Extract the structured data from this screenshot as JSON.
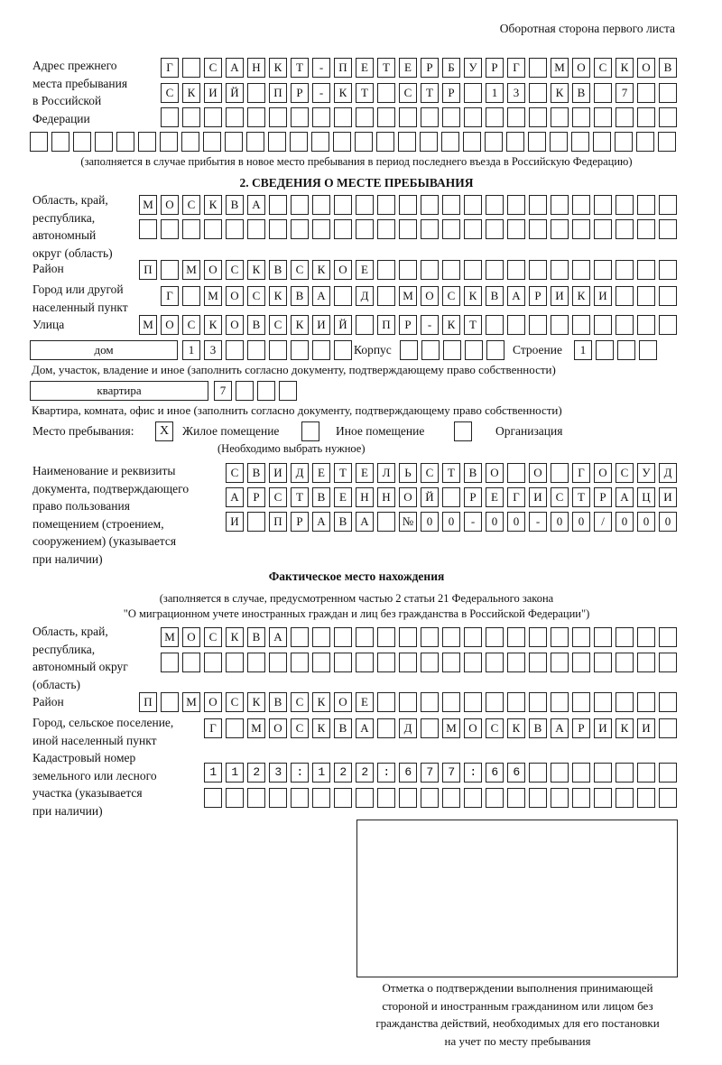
{
  "header": "Оборотная сторона первого листа",
  "previous_address": {
    "label": [
      "Адрес прежнего",
      "места пребывания",
      "в Российской",
      "Федерации"
    ],
    "rows": [
      "Г САНКТ-ПЕТЕРБУРГ МОСКОВ",
      "СКИЙ ПР-КТ СТР 13 КВ 7",
      "",
      ""
    ],
    "note": "(заполняется в случае прибытия в новое место пребывания в период последнего въезда в Российскую Федерацию)"
  },
  "section2": {
    "title": "2. СВЕДЕНИЯ О МЕСТЕ ПРЕБЫВАНИЯ",
    "region_label": [
      "Область, край,",
      "республика,",
      "автономный",
      "округ (область)"
    ],
    "region_rows": [
      "МОСКВА",
      ""
    ],
    "district_label": "Район",
    "district": "П МОСКВСКОЕ",
    "city_label": [
      "Город или другой",
      "населенный пункт"
    ],
    "city": "Г МОСКВА Д МОСКВАРИКИ",
    "street_label": "Улица",
    "street": "МОСКОВСКИЙ ПР-КТ",
    "house_type": "дом",
    "house": "13",
    "korpus_label": "Корпус",
    "korpus": "",
    "building_label": "Строение",
    "building": "1",
    "house_note": "Дом, участок, владение и иное (заполнить согласно документу, подтверждающему право собственности)",
    "apartment_type": "квартира",
    "apartment": "7",
    "apartment_note": "Квартира, комната, офис и иное (заполнить согласно документу, подтверждающему право собственности)",
    "place_label": "Место пребывания:",
    "place_options": [
      {
        "label": "Жилое помещение",
        "mark": "X"
      },
      {
        "label": "Иное помещение",
        "mark": ""
      },
      {
        "label": "Организация",
        "mark": ""
      }
    ],
    "place_note": "(Необходимо выбрать нужное)",
    "doc_label": [
      "Наименование и реквизиты",
      "документа, подтверждающего",
      "право пользования",
      "помещением (строением,",
      "сооружением) (указывается",
      "при наличии)"
    ],
    "doc_rows": [
      "СВИДЕТЕЛЬСТВО О ГОСУД",
      "АРСТВЕННОЙ РЕГИСТРАЦИ",
      "И ПРАВА №00-00-00/000"
    ]
  },
  "actual": {
    "title": "Фактическое место нахождения",
    "subtitle": [
      "(заполняется в случае, предусмотренном частью 2 статьи 21 Федерального закона",
      "\"О миграционном учете иностранных граждан и лиц без гражданства в Российской Федерации\")"
    ],
    "region_label": [
      "Область, край,",
      "республика,",
      "автономный округ",
      "(область)"
    ],
    "region_rows": [
      "МОСКВА",
      ""
    ],
    "district_label": "Район",
    "district": "П МОСКВСКОЕ",
    "city_label": [
      "Город, сельское поселение,",
      "иной населенный пункт"
    ],
    "city": "Г МОСКВА Д МОСКВАРИКИ",
    "cadastral_label": [
      "Кадастровый номер",
      "земельного или лесного",
      "участка (указывается",
      "при наличии)"
    ],
    "cadastral_rows": [
      "1123:122:677:66",
      ""
    ]
  },
  "stamp_caption": [
    "Отметка о подтверждении выполнения принимающей",
    "стороной и иностранным гражданином или лицом без",
    "гражданства действий, необходимых для его постановки",
    "на учет по месту пребывания"
  ]
}
